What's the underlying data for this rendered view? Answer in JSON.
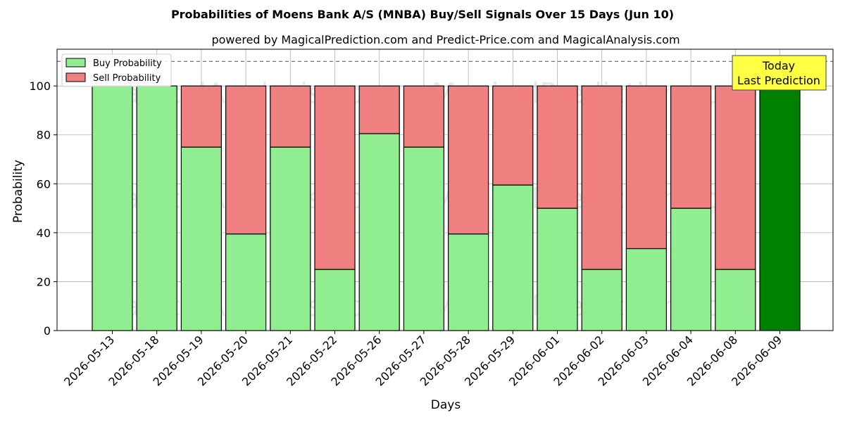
{
  "chart_data": {
    "type": "bar",
    "stacked": true,
    "title": "Probabilities of Moens Bank A/S (MNBA) Buy/Sell Signals Over 15 Days (Jun 10)",
    "subtitle": "powered by MagicalPrediction.com and Predict-Price.com and MagicalAnalysis.com",
    "xlabel": "Days",
    "ylabel": "Probability",
    "ylim": [
      0,
      115
    ],
    "yticks": [
      0,
      20,
      40,
      60,
      80,
      100
    ],
    "reference_line": 110,
    "grid": true,
    "legend_position": "top-left",
    "categories": [
      "2026-05-13",
      "2026-05-18",
      "2026-05-19",
      "2026-05-20",
      "2026-05-21",
      "2026-05-22",
      "2026-05-26",
      "2026-05-27",
      "2026-05-28",
      "2026-05-29",
      "2026-06-01",
      "2026-06-02",
      "2026-06-03",
      "2026-06-04",
      "2026-06-08",
      "2026-06-09"
    ],
    "series": [
      {
        "name": "Buy Probability",
        "color": "#90ee90",
        "values": [
          100,
          100,
          75,
          39.5,
          75,
          25,
          80.5,
          75,
          39.5,
          59.5,
          50,
          25,
          33.5,
          50,
          25,
          100
        ]
      },
      {
        "name": "Sell Probability",
        "color": "#f08080",
        "values": [
          0,
          0,
          25,
          60.5,
          25,
          75,
          19.5,
          25,
          60.5,
          40.5,
          50,
          75,
          66.5,
          50,
          75,
          0
        ]
      }
    ],
    "highlight": {
      "category": "2026-06-09",
      "color": "#008000"
    },
    "annotation": {
      "lines": [
        "Today",
        "Last Prediction"
      ],
      "background": "#ffff44"
    },
    "watermarks": [
      "MagicalAnalysis.com",
      "MagicalPrediction.com"
    ]
  }
}
